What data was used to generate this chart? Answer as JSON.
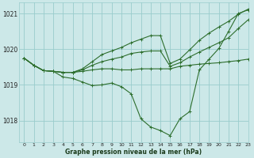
{
  "background_color": "#cce8e8",
  "grid_color": "#99cccc",
  "line_color": "#2d6e2d",
  "xlabel": "Graphe pression niveau de la mer (hPa)",
  "xlim": [
    -0.5,
    23
  ],
  "ylim": [
    1017.4,
    1021.3
  ],
  "yticks": [
    1018,
    1019,
    1020,
    1021
  ],
  "xticks": [
    0,
    1,
    2,
    3,
    4,
    5,
    6,
    7,
    8,
    9,
    10,
    11,
    12,
    13,
    14,
    15,
    16,
    17,
    18,
    19,
    20,
    21,
    22,
    23
  ],
  "series": [
    [
      1019.75,
      1019.55,
      1019.4,
      1019.38,
      1019.22,
      1019.18,
      1019.08,
      1018.98,
      1019.0,
      1019.05,
      1018.95,
      1018.75,
      1018.05,
      1017.82,
      1017.72,
      1017.58,
      1018.05,
      1018.25,
      1019.42,
      1019.72,
      1020.02,
      1020.5,
      1021.0,
      1021.1
    ],
    [
      1019.75,
      1019.55,
      1019.4,
      1019.38,
      1019.35,
      1019.35,
      1019.38,
      1019.42,
      1019.45,
      1019.45,
      1019.42,
      1019.42,
      1019.45,
      1019.45,
      1019.45,
      1019.45,
      1019.52,
      1019.55,
      1019.58,
      1019.6,
      1019.62,
      1019.65,
      1019.68,
      1019.72
    ],
    [
      1019.75,
      1019.55,
      1019.4,
      1019.38,
      1019.35,
      1019.35,
      1019.42,
      1019.55,
      1019.65,
      1019.72,
      1019.78,
      1019.88,
      1019.92,
      1019.95,
      1019.95,
      1019.52,
      1019.62,
      1019.78,
      1019.92,
      1020.05,
      1020.18,
      1020.32,
      1020.58,
      1020.82
    ],
    [
      1019.75,
      1019.55,
      1019.4,
      1019.38,
      1019.35,
      1019.35,
      1019.45,
      1019.65,
      1019.85,
      1019.95,
      1020.05,
      1020.18,
      1020.28,
      1020.38,
      1020.38,
      1019.6,
      1019.72,
      1019.98,
      1020.25,
      1020.45,
      1020.62,
      1020.78,
      1020.98,
      1021.12
    ]
  ]
}
